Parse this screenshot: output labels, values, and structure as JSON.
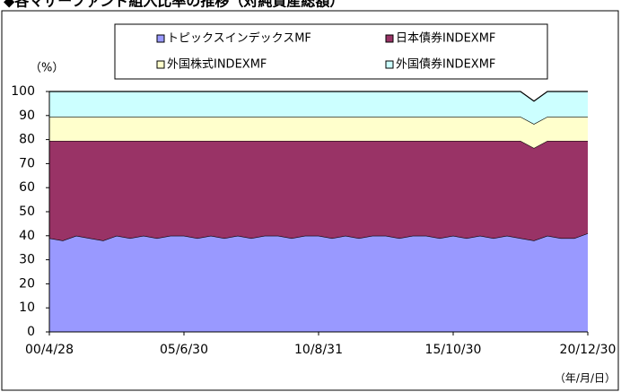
{
  "chart_data": {
    "type": "stacked_area",
    "title": "◆各マザーファンド組入比率の推移（対純資産総額）",
    "y_label": "（%）",
    "x_label": "（年/月/日）",
    "categories": [
      "00/4/28",
      null,
      null,
      null,
      null,
      null,
      null,
      null,
      null,
      null,
      "05/6/30",
      null,
      null,
      null,
      null,
      null,
      null,
      null,
      null,
      null,
      "10/8/31",
      null,
      null,
      null,
      null,
      null,
      null,
      null,
      null,
      null,
      "15/10/30",
      null,
      null,
      null,
      null,
      null,
      null,
      null,
      null,
      null,
      "20/12/30"
    ],
    "series": [
      {
        "name": "トピックスインデックスMF",
        "color": "#9999ff",
        "values": [
          39,
          38,
          40,
          39,
          38,
          40,
          39,
          40,
          39,
          40,
          40,
          39,
          40,
          39,
          40,
          39,
          40,
          40,
          39,
          40,
          40,
          39,
          40,
          39,
          40,
          40,
          39,
          40,
          40,
          39,
          40,
          39,
          40,
          39,
          40,
          39,
          38,
          40,
          39,
          39,
          41
        ]
      },
      {
        "name": "日本債券INDEXMF",
        "color": "#993366",
        "values": [
          40.5,
          41.5,
          39.5,
          40.5,
          41.5,
          39.5,
          40.5,
          39.5,
          40.5,
          39.5,
          39.5,
          40.5,
          39.5,
          40.5,
          39.5,
          40.5,
          39.5,
          39.5,
          40.5,
          39.5,
          39.5,
          40.5,
          39.5,
          40.5,
          39.5,
          39.5,
          40.5,
          39.5,
          39.5,
          40.5,
          39.5,
          40.5,
          39.5,
          40.5,
          39.5,
          40.5,
          38.5,
          39.5,
          40.5,
          40.5,
          38.5
        ]
      },
      {
        "name": "外国株式INDEXMF",
        "color": "#ffffcc",
        "values": [
          10,
          10,
          10,
          10,
          10,
          10,
          10,
          10,
          10,
          10,
          10,
          10,
          10,
          10,
          10,
          10,
          10,
          10,
          10,
          10,
          10,
          10,
          10,
          10,
          10,
          10,
          10,
          10,
          10,
          10,
          10,
          10,
          10,
          10,
          10,
          10,
          10,
          10,
          10,
          10,
          10
        ]
      },
      {
        "name": "外国債券INDEXMF",
        "color": "#ccffff",
        "values": [
          10.5,
          10.5,
          10.5,
          10.5,
          10.5,
          10.5,
          10.5,
          10.5,
          10.5,
          10.5,
          10.5,
          10.5,
          10.5,
          10.5,
          10.5,
          10.5,
          10.5,
          10.5,
          10.5,
          10.5,
          10.5,
          10.5,
          10.5,
          10.5,
          10.5,
          10.5,
          10.5,
          10.5,
          10.5,
          10.5,
          10.5,
          10.5,
          10.5,
          10.5,
          10.5,
          10.5,
          9.5,
          10.5,
          10.5,
          10.5,
          10.5
        ]
      }
    ],
    "ylim": [
      0,
      100
    ],
    "yticks": [
      0,
      10,
      20,
      30,
      40,
      50,
      60,
      70,
      80,
      90,
      100
    ]
  }
}
